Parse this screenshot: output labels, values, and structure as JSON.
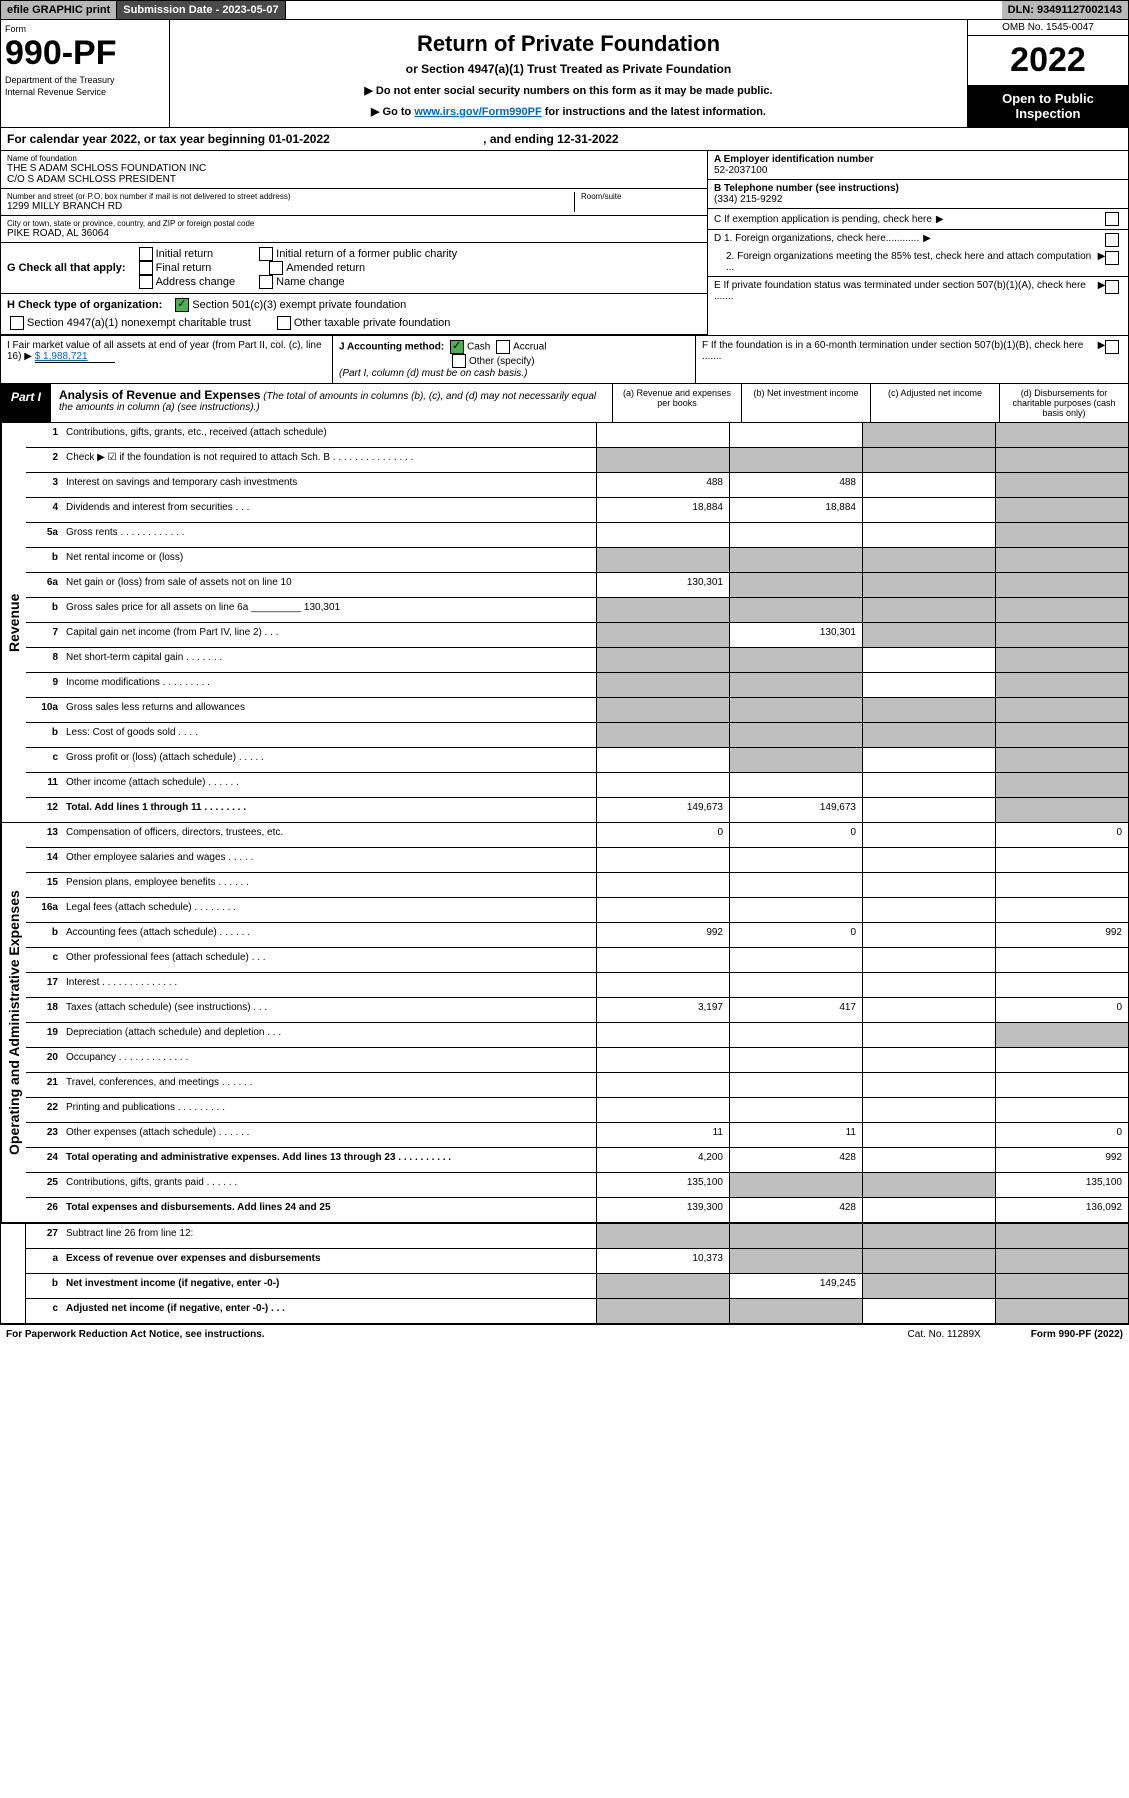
{
  "top": {
    "efile": "efile GRAPHIC print",
    "sub_label": "Submission Date - 2023-05-07",
    "dln": "DLN: 93491127002143"
  },
  "hdr": {
    "form": "Form",
    "num": "990-PF",
    "dept": "Department of the Treasury",
    "irs": "Internal Revenue Service",
    "title": "Return of Private Foundation",
    "sub": "or Section 4947(a)(1) Trust Treated as Private Foundation",
    "inst1": "▶ Do not enter social security numbers on this form as it may be made public.",
    "inst2": "▶ Go to ",
    "inst_link": "www.irs.gov/Form990PF",
    "inst3": " for instructions and the latest information.",
    "omb": "OMB No. 1545-0047",
    "year": "2022",
    "open": "Open to Public Inspection"
  },
  "cal": {
    "txt": "For calendar year 2022, or tax year beginning 01-01-2022",
    "end": ", and ending 12-31-2022"
  },
  "name": {
    "lbl": "Name of foundation",
    "l1": "THE S ADAM SCHLOSS FOUNDATION INC",
    "l2": "C/O S ADAM SCHLOSS PRESIDENT"
  },
  "addr": {
    "lbl": "Number and street (or P.O. box number if mail is not delivered to street address)",
    "room_lbl": "Room/suite",
    "val": "1299 MILLY BRANCH RD"
  },
  "city": {
    "lbl": "City or town, state or province, country, and ZIP or foreign postal code",
    "val": "PIKE ROAD, AL  36064"
  },
  "ein": {
    "lbl": "A Employer identification number",
    "val": "52-2037100"
  },
  "tel": {
    "lbl": "B Telephone number (see instructions)",
    "val": "(334) 215-9292"
  },
  "c": {
    "txt": "C If exemption application is pending, check here"
  },
  "d": {
    "d1": "D 1. Foreign organizations, check here............",
    "d2": "2. Foreign organizations meeting the 85% test, check here and attach computation ..."
  },
  "e": {
    "txt": "E  If private foundation status was terminated under section 507(b)(1)(A), check here ......."
  },
  "f": {
    "txt": "F  If the foundation is in a 60-month termination under section 507(b)(1)(B), check here ......."
  },
  "g": {
    "lead": "G Check all that apply:",
    "o1": "Initial return",
    "o2": "Final return",
    "o3": "Address change",
    "o4": "Initial return of a former public charity",
    "o5": "Amended return",
    "o6": "Name change"
  },
  "h": {
    "lead": "H Check type of organization:",
    "o1": "Section 501(c)(3) exempt private foundation",
    "o2": "Section 4947(a)(1) nonexempt charitable trust",
    "o3": "Other taxable private foundation"
  },
  "i": {
    "txt": "I Fair market value of all assets at end of year (from Part II, col. (c), line 16) ▶ ",
    "val": "$  1,988,721"
  },
  "j": {
    "lead": "J Accounting method:",
    "o1": "Cash",
    "o2": "Accrual",
    "o3": "Other (specify)",
    "note": "(Part I, column (d) must be on cash basis.)"
  },
  "part1": {
    "tag": "Part I",
    "title": "Analysis of Revenue and Expenses",
    "note": "(The total of amounts in columns (b), (c), and (d) may not necessarily equal the amounts in column (a) (see instructions).)",
    "ca": "(a)    Revenue and expenses per books",
    "cb": "(b)    Net investment income",
    "cc": "(c)    Adjusted net income",
    "cd": "(d)    Disbursements for charitable purposes (cash basis only)"
  },
  "sides": {
    "rev": "Revenue",
    "exp": "Operating and Administrative Expenses"
  },
  "rows": [
    {
      "n": "1",
      "t": "Contributions, gifts, grants, etc., received (attach schedule)",
      "a": "",
      "b": "",
      "cg": 1,
      "dg": 1
    },
    {
      "n": "2",
      "t": "Check ▶ ☑ if the foundation is not required to attach Sch. B   .   .   .   .   .   .   .   .   .   .   .   .   .   .   .",
      "ag": 1,
      "bg": 1,
      "cg": 1,
      "dg": 1,
      "bold": 0
    },
    {
      "n": "3",
      "t": "Interest on savings and temporary cash investments",
      "a": "488",
      "b": "488",
      "cg": 0,
      "dg": 1
    },
    {
      "n": "4",
      "t": "Dividends and interest from securities   .   .   .",
      "a": "18,884",
      "b": "18,884",
      "cg": 0,
      "dg": 1
    },
    {
      "n": "5a",
      "t": "Gross rents    .   .   .   .   .   .   .   .   .   .   .   .",
      "a": "",
      "b": "",
      "cg": 0,
      "dg": 1
    },
    {
      "n": "b",
      "t": "Net rental income or (loss)  ",
      "a": "",
      "ag": 1,
      "bg": 1,
      "cg": 1,
      "dg": 1
    },
    {
      "n": "6a",
      "t": "Net gain or (loss) from sale of assets not on line 10",
      "a": "130,301",
      "bg": 1,
      "cg": 1,
      "dg": 1
    },
    {
      "n": "b",
      "t": "Gross sales price for all assets on line 6a _________ 130,301",
      "ag": 1,
      "bg": 1,
      "cg": 1,
      "dg": 1
    },
    {
      "n": "7",
      "t": "Capital gain net income (from Part IV, line 2)   .   .   .",
      "ag": 1,
      "b": "130,301",
      "cg": 1,
      "dg": 1
    },
    {
      "n": "8",
      "t": "Net short-term capital gain   .   .   .   .   .   .   .",
      "ag": 1,
      "bg": 1,
      "cg": 0,
      "dg": 1
    },
    {
      "n": "9",
      "t": "Income modifications   .   .   .   .   .   .   .   .   .",
      "ag": 1,
      "bg": 1,
      "cg": 0,
      "dg": 1
    },
    {
      "n": "10a",
      "t": "Gross sales less returns and allowances",
      "ag": 1,
      "bg": 1,
      "cg": 1,
      "dg": 1
    },
    {
      "n": "b",
      "t": "Less: Cost of goods sold   .   .   .   .",
      "ag": 1,
      "bg": 1,
      "cg": 1,
      "dg": 1
    },
    {
      "n": "c",
      "t": "Gross profit or (loss) (attach schedule)   .   .   .   .   .",
      "a": "",
      "bg": 1,
      "cg": 0,
      "dg": 1
    },
    {
      "n": "11",
      "t": "Other income (attach schedule)   .   .   .   .   .   .",
      "a": "",
      "b": "",
      "cg": 0,
      "dg": 1
    },
    {
      "n": "12",
      "t": "Total. Add lines 1 through 11   .   .   .   .   .   .   .   .",
      "a": "149,673",
      "b": "149,673",
      "cg": 0,
      "dg": 1,
      "bold": 1
    }
  ],
  "erows": [
    {
      "n": "13",
      "t": "Compensation of officers, directors, trustees, etc.",
      "a": "0",
      "b": "0",
      "cg": 0,
      "d": "0"
    },
    {
      "n": "14",
      "t": "Other employee salaries and wages   .   .   .   .   .",
      "a": "",
      "b": "",
      "cg": 0,
      "d": ""
    },
    {
      "n": "15",
      "t": "Pension plans, employee benefits   .   .   .   .   .   .",
      "a": "",
      "b": "",
      "cg": 0,
      "d": ""
    },
    {
      "n": "16a",
      "t": "Legal fees (attach schedule)   .   .   .   .   .   .   .   .",
      "a": "",
      "b": "",
      "cg": 0,
      "d": ""
    },
    {
      "n": "b",
      "t": "Accounting fees (attach schedule)   .   .   .   .   .   .",
      "a": "992",
      "b": "0",
      "cg": 0,
      "d": "992"
    },
    {
      "n": "c",
      "t": "Other professional fees (attach schedule)   .   .   .",
      "a": "",
      "b": "",
      "cg": 0,
      "d": ""
    },
    {
      "n": "17",
      "t": "Interest   .   .   .   .   .   .   .   .   .   .   .   .   .   .",
      "a": "",
      "b": "",
      "cg": 0,
      "d": ""
    },
    {
      "n": "18",
      "t": "Taxes (attach schedule) (see instructions)   .   .   .",
      "a": "3,197",
      "b": "417",
      "cg": 0,
      "d": "0"
    },
    {
      "n": "19",
      "t": "Depreciation (attach schedule) and depletion   .   .   .",
      "a": "",
      "b": "",
      "cg": 0,
      "dg": 1
    },
    {
      "n": "20",
      "t": "Occupancy   .   .   .   .   .   .   .   .   .   .   .   .   .",
      "a": "",
      "b": "",
      "cg": 0,
      "d": ""
    },
    {
      "n": "21",
      "t": "Travel, conferences, and meetings   .   .   .   .   .   .",
      "a": "",
      "b": "",
      "cg": 0,
      "d": ""
    },
    {
      "n": "22",
      "t": "Printing and publications   .   .   .   .   .   .   .   .   .",
      "a": "",
      "b": "",
      "cg": 0,
      "d": ""
    },
    {
      "n": "23",
      "t": "Other expenses (attach schedule)   .   .   .   .   .   .",
      "a": "11",
      "b": "11",
      "cg": 0,
      "d": "0"
    },
    {
      "n": "24",
      "t": "Total operating and administrative expenses. Add lines 13 through 23   .   .   .   .   .   .   .   .   .   .",
      "a": "4,200",
      "b": "428",
      "cg": 0,
      "d": "992",
      "bold": 1
    },
    {
      "n": "25",
      "t": "Contributions, gifts, grants paid   .   .   .   .   .   .",
      "a": "135,100",
      "bg": 1,
      "cg": 1,
      "d": "135,100"
    },
    {
      "n": "26",
      "t": "Total expenses and disbursements. Add lines 24 and 25",
      "a": "139,300",
      "b": "428",
      "cg": 0,
      "d": "136,092",
      "bold": 1
    }
  ],
  "brows": [
    {
      "n": "27",
      "t": "Subtract line 26 from line 12:",
      "ag": 1,
      "bg": 1,
      "cg": 1,
      "dg": 1
    },
    {
      "n": "a",
      "t": "Excess of revenue over expenses and disbursements",
      "a": "10,373",
      "bg": 1,
      "cg": 1,
      "dg": 1,
      "bold": 1
    },
    {
      "n": "b",
      "t": "Net investment income (if negative, enter -0-)",
      "ag": 1,
      "b": "149,245",
      "cg": 1,
      "dg": 1,
      "bold": 1
    },
    {
      "n": "c",
      "t": "Adjusted net income (if negative, enter -0-)   .   .   .",
      "ag": 1,
      "bg": 1,
      "cg": 0,
      "dg": 1,
      "bold": 1
    }
  ],
  "foot": {
    "pra": "For Paperwork Reduction Act Notice, see instructions.",
    "cat": "Cat. No. 11289X",
    "form": "Form 990-PF (2022)"
  }
}
